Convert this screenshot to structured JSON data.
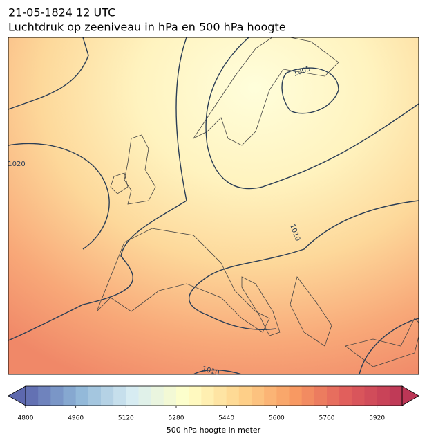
{
  "header": {
    "title": "21-05-1824 12 UTC",
    "subtitle": "Luchtdruk op zeeniveau in hPa en 500 hPa hoogte"
  },
  "map": {
    "contour_labels": [
      "1005",
      "1010",
      "1020",
      "1010"
    ]
  },
  "colorbar": {
    "label": "500 hPa hoogte in meter",
    "lim": [
      4800,
      6000
    ],
    "step": 40,
    "ticks": [
      4800,
      4960,
      5120,
      5280,
      5440,
      5600,
      5760,
      5920
    ],
    "colors": [
      "#5d68ae",
      "#8fb6d8",
      "#d8edf2",
      "#ffffc8",
      "#fed48c",
      "#f89a62",
      "#e05c5c",
      "#bc3656"
    ]
  }
}
